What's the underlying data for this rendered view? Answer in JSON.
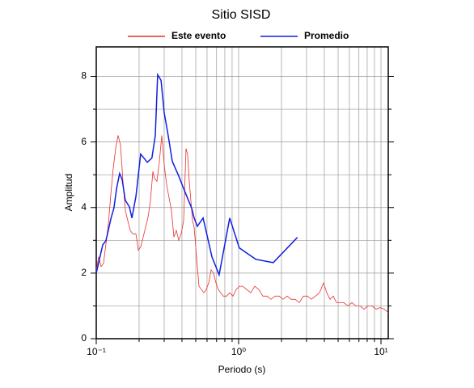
{
  "chart_data": {
    "type": "line",
    "title": "Sitio SISD",
    "xlabel": "Periodo (s)",
    "ylabel": "Amplitud",
    "xscale": "log",
    "xlim": [
      0.1,
      11.25
    ],
    "ylim": [
      0,
      8.9
    ],
    "xticks": [
      {
        "value": 0.1,
        "label": "10⁻¹"
      },
      {
        "value": 1,
        "label": "10⁰"
      },
      {
        "value": 10,
        "label": "10¹"
      }
    ],
    "x_minor_ticks": [
      0.2,
      0.3,
      0.4,
      0.5,
      0.6,
      0.7,
      0.8,
      0.9,
      2,
      3,
      4,
      5,
      6,
      7,
      8,
      9
    ],
    "yticks": [
      0,
      2,
      4,
      6,
      8
    ],
    "y_minor_ticks": [
      1,
      3,
      5,
      7
    ],
    "grid": true,
    "legend": "top",
    "series": [
      {
        "name": "Este evento",
        "color": "#e8302a",
        "x": [
          0.1,
          0.104,
          0.1082,
          0.1125,
          0.117,
          0.1217,
          0.1266,
          0.1316,
          0.1369,
          0.1424,
          0.1481,
          0.154,
          0.1602,
          0.1666,
          0.1732,
          0.1802,
          0.1898,
          0.1974,
          0.2054,
          0.2136,
          0.2222,
          0.2311,
          0.2403,
          0.2499,
          0.2566,
          0.2668,
          0.2775,
          0.2886,
          0.3001,
          0.3121,
          0.3246,
          0.3376,
          0.3511,
          0.3652,
          0.3797,
          0.395,
          0.4108,
          0.4272,
          0.4386,
          0.4502,
          0.4622,
          0.4745,
          0.487,
          0.5,
          0.5132,
          0.5268,
          0.5479,
          0.5699,
          0.5926,
          0.6163,
          0.641,
          0.6667,
          0.6934,
          0.7211,
          0.7499,
          0.7799,
          0.822,
          0.866,
          0.9125,
          0.9617,
          1.013,
          1.068,
          1.14,
          1.217,
          1.299,
          1.387,
          1.481,
          1.581,
          1.688,
          1.802,
          1.924,
          2.054,
          2.193,
          2.341,
          2.499,
          2.668,
          2.848,
          3.041,
          3.246,
          3.466,
          3.7,
          3.95,
          4.162,
          4.386,
          4.622,
          4.87,
          5.132,
          5.479,
          5.849,
          6.244,
          6.667,
          7.117,
          7.598,
          8.111,
          8.66,
          9.245,
          9.87,
          10.54,
          11.25
        ],
        "values": [
          2.1,
          2.5,
          2.2,
          2.3,
          2.9,
          3.5,
          4.4,
          5.2,
          5.8,
          6.2,
          5.9,
          4.8,
          3.9,
          3.6,
          3.3,
          3.2,
          3.2,
          2.7,
          2.8,
          3.1,
          3.4,
          3.7,
          4.2,
          5.1,
          4.9,
          4.8,
          5.4,
          6.2,
          5.3,
          4.7,
          4.3,
          3.9,
          3.1,
          3.3,
          3.0,
          3.2,
          3.6,
          5.8,
          5.6,
          4.8,
          4.2,
          3.6,
          3.4,
          2.8,
          2.2,
          1.6,
          1.5,
          1.4,
          1.5,
          1.7,
          2.1,
          2.0,
          1.7,
          1.5,
          1.4,
          1.3,
          1.3,
          1.4,
          1.3,
          1.5,
          1.6,
          1.6,
          1.5,
          1.4,
          1.6,
          1.5,
          1.3,
          1.3,
          1.2,
          1.3,
          1.3,
          1.2,
          1.3,
          1.2,
          1.2,
          1.1,
          1.3,
          1.3,
          1.2,
          1.3,
          1.4,
          1.7,
          1.4,
          1.2,
          1.3,
          1.1,
          1.1,
          1.1,
          1.0,
          1.1,
          1.0,
          1.0,
          0.9,
          1.0,
          1.0,
          0.9,
          0.95,
          0.9,
          0.8
        ]
      },
      {
        "name": "Promedio",
        "color": "#1020e0",
        "x": [
          0.1,
          0.111,
          0.117,
          0.127,
          0.133,
          0.139,
          0.146,
          0.152,
          0.16,
          0.171,
          0.178,
          0.19,
          0.205,
          0.219,
          0.228,
          0.246,
          0.26,
          0.27,
          0.285,
          0.3,
          0.32,
          0.342,
          0.38,
          0.416,
          0.468,
          0.487,
          0.513,
          0.563,
          0.65,
          0.73,
          0.866,
          1.01,
          1.32,
          1.75,
          2.59
        ],
        "values": [
          2.0,
          2.86,
          2.99,
          3.68,
          3.98,
          4.59,
          5.04,
          4.86,
          4.22,
          4.02,
          3.68,
          4.35,
          5.63,
          5.48,
          5.38,
          5.51,
          6.2,
          8.05,
          7.88,
          6.89,
          6.2,
          5.41,
          4.96,
          4.52,
          3.98,
          3.68,
          3.43,
          3.68,
          2.49,
          1.95,
          3.68,
          2.77,
          2.42,
          2.32,
          3.09
        ]
      }
    ]
  }
}
